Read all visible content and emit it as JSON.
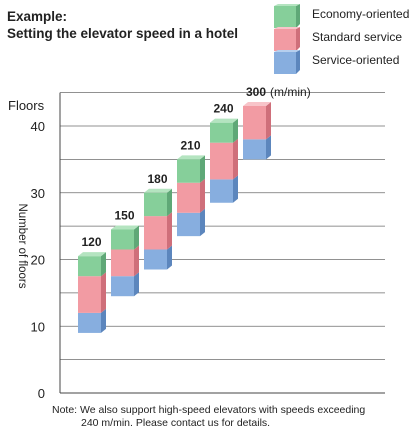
{
  "title_lines": [
    "Example:",
    "Setting the elevator speed in a hotel"
  ],
  "legend": [
    {
      "label": "Economy-oriented",
      "color": "#86cf9a",
      "side": "#5fa877",
      "top": "#b4e4c0"
    },
    {
      "label": "Standard service",
      "color": "#f29ba3",
      "side": "#cf6f7a",
      "top": "#f8c4c9"
    },
    {
      "label": "Service-oriented",
      "color": "#87aedf",
      "side": "#5c86bd",
      "top": "#b6cfee"
    }
  ],
  "chart_data": {
    "type": "bar",
    "subtype": "floating-stacked-range",
    "ylabel_top": "Floors",
    "ylabel": "Number of floors",
    "ylim": [
      0,
      45
    ],
    "yticks": [
      0,
      10,
      20,
      30,
      40
    ],
    "gridlines": [
      5,
      10,
      15,
      20,
      25,
      30,
      35,
      40,
      45
    ],
    "categories": [
      "120",
      "150",
      "180",
      "210",
      "240",
      "300"
    ],
    "last_category_unit": "(m/min)",
    "series": [
      {
        "name": "Service-oriented",
        "ranges": [
          [
            9,
            12
          ],
          [
            14.5,
            17.5
          ],
          [
            18.5,
            21.5
          ],
          [
            23.5,
            27
          ],
          [
            28.5,
            32
          ],
          [
            35,
            38
          ]
        ]
      },
      {
        "name": "Standard service",
        "ranges": [
          [
            12,
            17.5
          ],
          [
            17.5,
            21.5
          ],
          [
            21.5,
            26.5
          ],
          [
            27,
            31.5
          ],
          [
            32,
            37.5
          ],
          [
            38,
            43
          ]
        ]
      },
      {
        "name": "Economy-oriented",
        "ranges": [
          [
            17.5,
            20.5
          ],
          [
            21.5,
            24.5
          ],
          [
            26.5,
            30
          ],
          [
            31.5,
            35
          ],
          [
            37.5,
            40.5
          ],
          [
            43,
            43
          ]
        ]
      }
    ]
  },
  "note_lines": [
    "Note: We also support high-speed elevators with speeds exceeding",
    "240 m/min. Please contact us for details."
  ]
}
